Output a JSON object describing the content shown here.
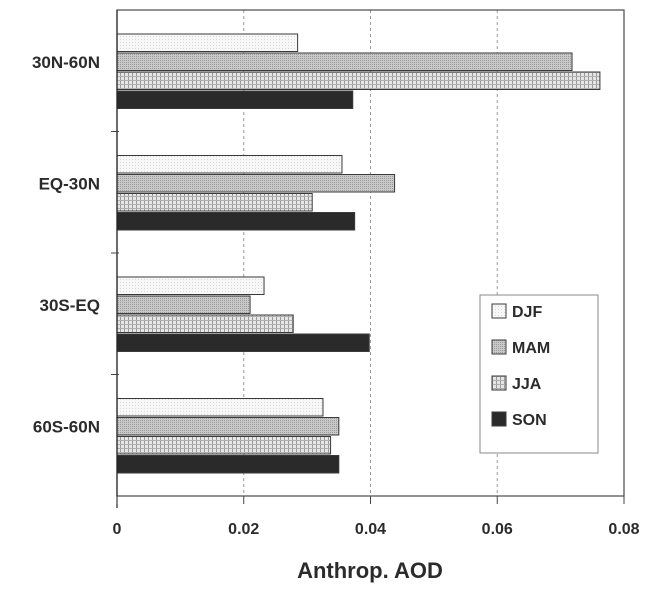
{
  "chart_data": {
    "type": "bar",
    "orientation": "horizontal",
    "title": "",
    "xlabel": "Anthrop. AOD",
    "ylabel": "",
    "categories": [
      "30N-60N",
      "EQ-30N",
      "30S-EQ",
      "60S-60N"
    ],
    "series": [
      {
        "name": "DJF",
        "values": [
          0.0285,
          0.0355,
          0.0232,
          0.0325
        ],
        "color": "#f4f4f4",
        "pattern": "light"
      },
      {
        "name": "MAM",
        "values": [
          0.0718,
          0.0438,
          0.021,
          0.035
        ],
        "color": "#c4c4c4",
        "pattern": "medium"
      },
      {
        "name": "JJA",
        "values": [
          0.0762,
          0.0308,
          0.0278,
          0.0337
        ],
        "color": "#dcdcdc",
        "pattern": "dotted"
      },
      {
        "name": "SON",
        "values": [
          0.0372,
          0.0375,
          0.0398,
          0.035
        ],
        "color": "#2a2a2a",
        "pattern": "solid"
      }
    ],
    "xlim": [
      0,
      0.08
    ],
    "xticks": [
      "0",
      "0.02",
      "0.04",
      "0.06",
      "0.08"
    ],
    "grid": true,
    "legend_position": "bottom-right"
  }
}
